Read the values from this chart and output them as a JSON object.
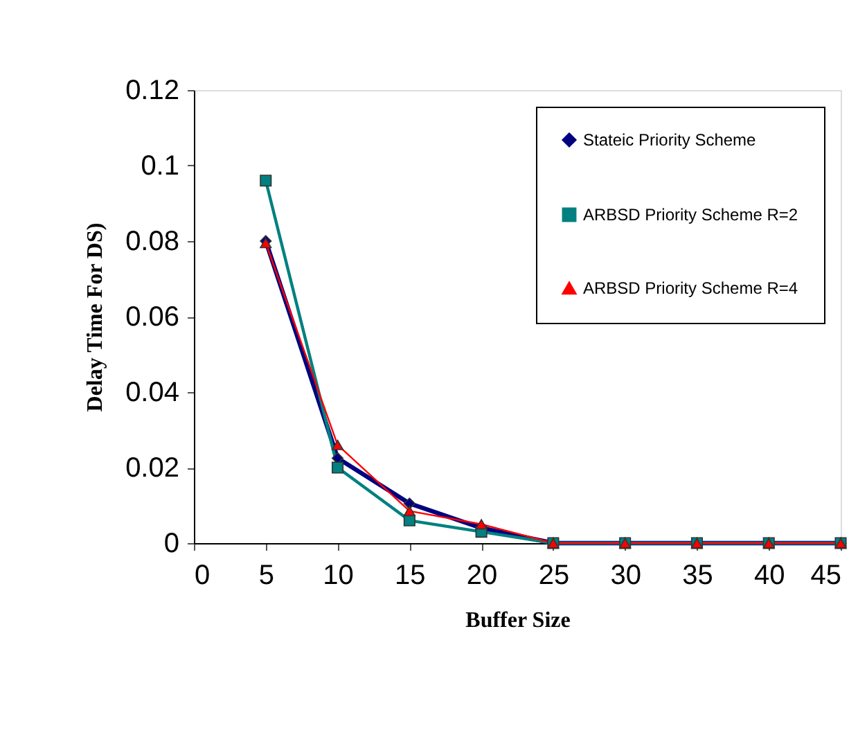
{
  "chart_data": {
    "type": "line",
    "xlabel": "Buffer Size",
    "ylabel": "Delay Time For DS)",
    "x": [
      5,
      10,
      15,
      20,
      25,
      30,
      35,
      40,
      45
    ],
    "series": [
      {
        "name": "Stateic Priority Scheme",
        "color": "#000080",
        "marker": "diamond",
        "values": [
          0.08,
          0.0225,
          0.0105,
          0.004,
          0,
          0,
          0,
          0,
          0
        ]
      },
      {
        "name": "ARBSD Priority Scheme R=2",
        "color": "#008080",
        "marker": "square",
        "values": [
          0.096,
          0.02,
          0.006,
          0.003,
          0,
          0,
          0,
          0,
          0
        ]
      },
      {
        "name": "ARBSD Priority Scheme R=4",
        "color": "#ff0000",
        "marker": "triangle",
        "values": [
          0.0795,
          0.026,
          0.0085,
          0.005,
          0,
          0,
          0,
          0,
          0
        ]
      }
    ],
    "xlim": [
      0,
      45
    ],
    "xticks": [
      0,
      5,
      10,
      15,
      20,
      25,
      30,
      35,
      40,
      45
    ],
    "ylim": [
      0,
      0.12
    ],
    "yticks": [
      0,
      0.02,
      0.04,
      0.06,
      0.08,
      0.1,
      0.12
    ],
    "grid": false,
    "legend": "top right",
    "line_style": "solid"
  }
}
